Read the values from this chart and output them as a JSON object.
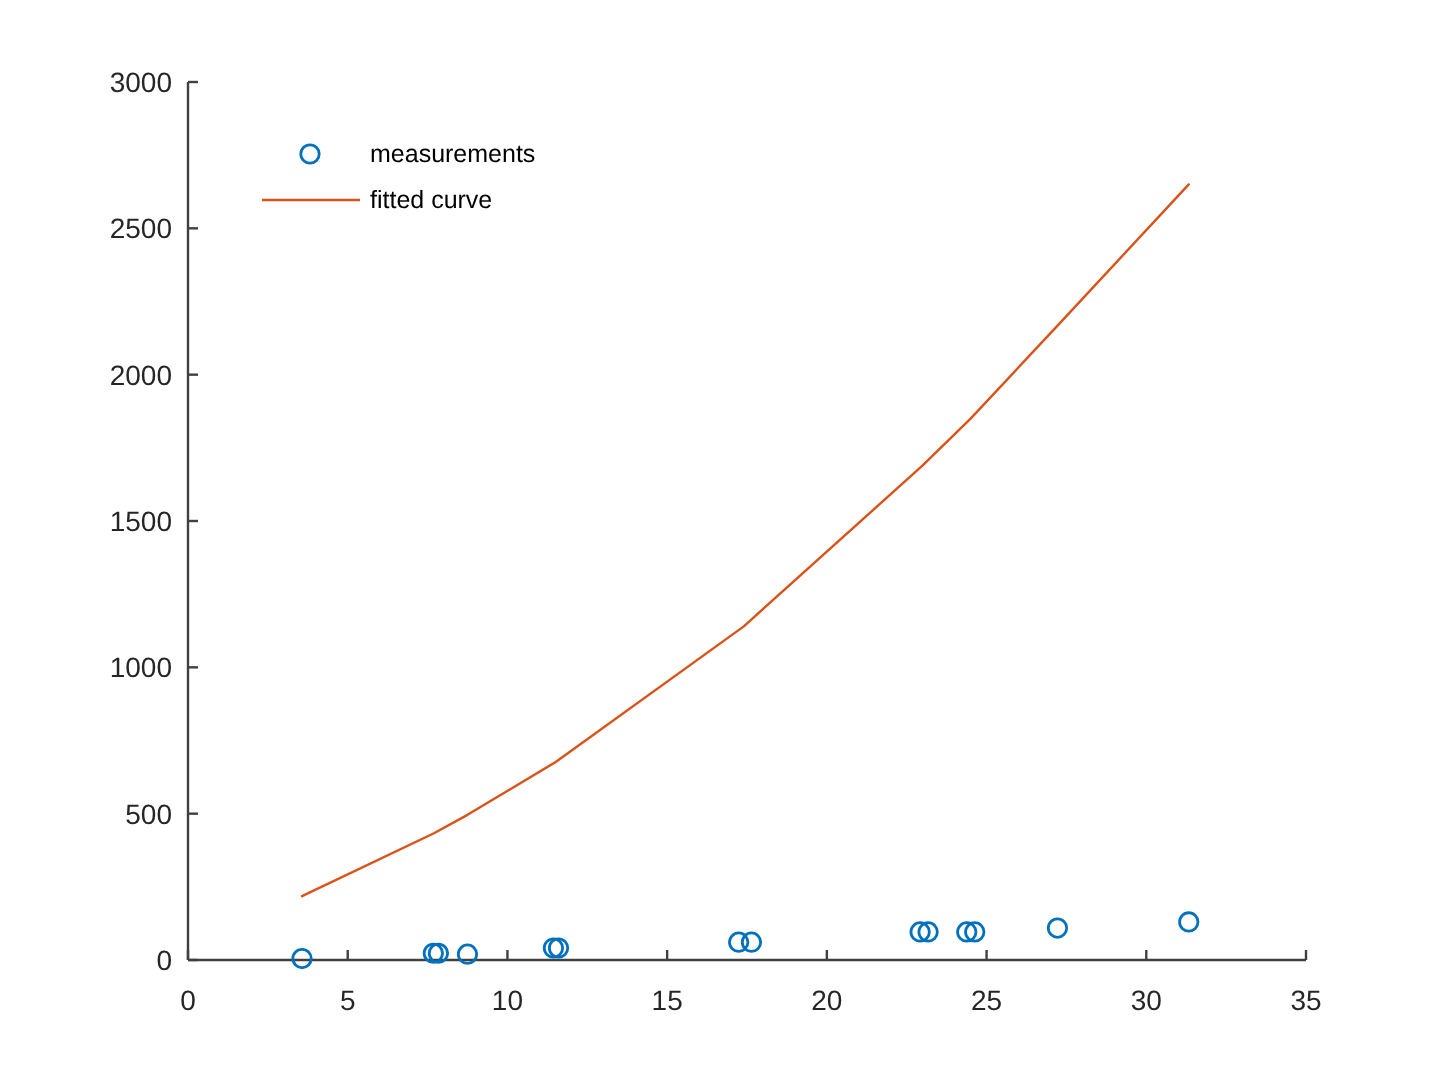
{
  "chart_data": {
    "type": "scatter",
    "xlim": [
      0,
      35
    ],
    "xticks": [
      0,
      5,
      10,
      15,
      20,
      25,
      30,
      35
    ],
    "ylim": [
      0,
      3000
    ],
    "yticks": [
      0,
      500,
      1000,
      1500,
      2000,
      2500,
      3000
    ],
    "legend": "top left",
    "series": [
      {
        "name": "measurements",
        "color": "#0072bd",
        "marker": "circle",
        "x": [
          3.57,
          7.68,
          7.84,
          8.75,
          11.44,
          11.6,
          17.24,
          17.64,
          22.92,
          23.17,
          24.38,
          24.63,
          27.22,
          31.33
        ],
        "values": [
          5,
          23,
          23,
          20,
          41,
          41,
          61,
          61,
          96,
          96,
          96,
          96,
          109,
          130
        ]
      },
      {
        "name": "fitted curve",
        "type": "line",
        "color": "#d95319",
        "line_style": "solid",
        "x": [
          3.57,
          7.7,
          8.75,
          11.5,
          17.4,
          23.0,
          24.5,
          27.2,
          31.33
        ],
        "values": [
          218,
          433,
          496,
          676,
          1140,
          1690,
          1850,
          2165,
          2650
        ]
      }
    ]
  }
}
